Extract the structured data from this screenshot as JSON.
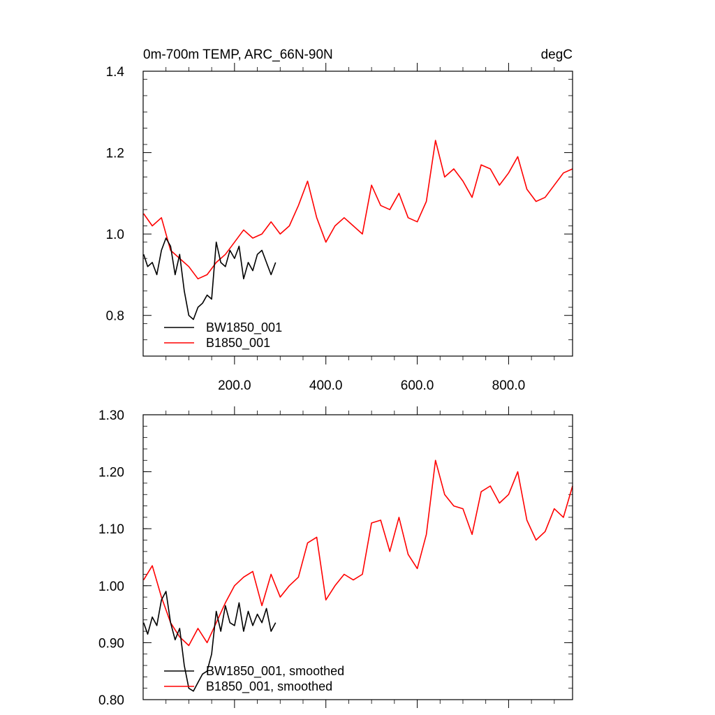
{
  "chart_data": [
    {
      "type": "line",
      "title": "0m-700m TEMP, ARC_66N-90N",
      "units": "degC",
      "xlim": [
        0,
        940
      ],
      "ylim": [
        0.7,
        1.4
      ],
      "xticks": [
        200,
        400,
        600,
        800
      ],
      "xtick_labels": [
        "200.0",
        "400.0",
        "600.0",
        "800.0"
      ],
      "yticks": [
        0.8,
        1.0,
        1.2,
        1.4
      ],
      "ytick_labels": [
        "0.8",
        "1.0",
        "1.2",
        "1.4"
      ],
      "legend_position": "bottom-left",
      "series": [
        {
          "name": "BW1850_001",
          "color": "#000000",
          "x": [
            1,
            10,
            20,
            30,
            40,
            50,
            60,
            70,
            80,
            90,
            100,
            110,
            120,
            130,
            140,
            150,
            160,
            170,
            180,
            190,
            200,
            210,
            220,
            230,
            240,
            250,
            260,
            270,
            280,
            290
          ],
          "y": [
            0.95,
            0.92,
            0.93,
            0.9,
            0.96,
            0.99,
            0.97,
            0.9,
            0.95,
            0.86,
            0.8,
            0.79,
            0.82,
            0.83,
            0.85,
            0.84,
            0.98,
            0.93,
            0.92,
            0.96,
            0.94,
            0.97,
            0.89,
            0.93,
            0.91,
            0.95,
            0.96,
            0.93,
            0.9,
            0.93
          ]
        },
        {
          "name": "B1850_001",
          "color": "#ff0000",
          "x": [
            1,
            20,
            40,
            60,
            80,
            100,
            120,
            140,
            160,
            180,
            200,
            220,
            240,
            260,
            280,
            300,
            320,
            340,
            360,
            380,
            400,
            420,
            440,
            460,
            480,
            500,
            520,
            540,
            560,
            580,
            600,
            620,
            640,
            660,
            680,
            700,
            720,
            740,
            760,
            780,
            800,
            820,
            840,
            860,
            880,
            900,
            920,
            940
          ],
          "y": [
            1.05,
            1.02,
            1.04,
            0.96,
            0.94,
            0.92,
            0.89,
            0.9,
            0.93,
            0.95,
            0.98,
            1.01,
            0.99,
            1.0,
            1.03,
            1.0,
            1.02,
            1.07,
            1.13,
            1.04,
            0.98,
            1.02,
            1.04,
            1.02,
            1.0,
            1.12,
            1.07,
            1.06,
            1.1,
            1.04,
            1.03,
            1.08,
            1.23,
            1.14,
            1.16,
            1.13,
            1.09,
            1.17,
            1.16,
            1.12,
            1.15,
            1.19,
            1.11,
            1.08,
            1.09,
            1.12,
            1.15,
            1.16
          ]
        }
      ]
    },
    {
      "type": "line",
      "title": "",
      "units": "",
      "xlim": [
        0,
        940
      ],
      "ylim": [
        0.8,
        1.3
      ],
      "xticks": [
        200,
        400,
        600,
        800
      ],
      "xtick_labels": [
        "",
        "",
        "",
        ""
      ],
      "yticks": [
        0.8,
        0.9,
        1.0,
        1.1,
        1.2,
        1.3
      ],
      "ytick_labels": [
        "0.80",
        "0.90",
        "1.00",
        "1.10",
        "1.20",
        "1.30"
      ],
      "legend_position": "bottom-left",
      "series": [
        {
          "name": "BW1850_001, smoothed",
          "color": "#000000",
          "x": [
            1,
            10,
            20,
            30,
            40,
            50,
            60,
            70,
            80,
            90,
            100,
            110,
            120,
            130,
            140,
            150,
            160,
            170,
            180,
            190,
            200,
            210,
            220,
            230,
            240,
            250,
            260,
            270,
            280,
            290
          ],
          "y": [
            0.935,
            0.915,
            0.945,
            0.93,
            0.975,
            0.99,
            0.935,
            0.905,
            0.925,
            0.86,
            0.82,
            0.815,
            0.83,
            0.845,
            0.85,
            0.88,
            0.955,
            0.92,
            0.965,
            0.935,
            0.93,
            0.97,
            0.92,
            0.955,
            0.93,
            0.95,
            0.935,
            0.96,
            0.92,
            0.935
          ]
        },
        {
          "name": "B1850_001, smoothed",
          "color": "#ff0000",
          "x": [
            1,
            20,
            40,
            60,
            80,
            100,
            120,
            140,
            160,
            180,
            200,
            220,
            240,
            260,
            280,
            300,
            320,
            340,
            360,
            380,
            400,
            420,
            440,
            460,
            480,
            500,
            520,
            540,
            560,
            580,
            600,
            620,
            640,
            660,
            680,
            700,
            720,
            740,
            760,
            780,
            800,
            820,
            840,
            860,
            880,
            900,
            920,
            940
          ],
          "y": [
            1.01,
            1.035,
            0.98,
            0.935,
            0.91,
            0.895,
            0.925,
            0.9,
            0.935,
            0.97,
            1.0,
            1.015,
            1.025,
            0.965,
            1.02,
            0.98,
            1.0,
            1.015,
            1.075,
            1.085,
            0.975,
            1.0,
            1.02,
            1.01,
            1.02,
            1.11,
            1.115,
            1.06,
            1.12,
            1.055,
            1.03,
            1.09,
            1.22,
            1.16,
            1.14,
            1.135,
            1.09,
            1.165,
            1.175,
            1.145,
            1.16,
            1.2,
            1.115,
            1.08,
            1.095,
            1.135,
            1.12,
            1.175
          ]
        }
      ]
    }
  ]
}
